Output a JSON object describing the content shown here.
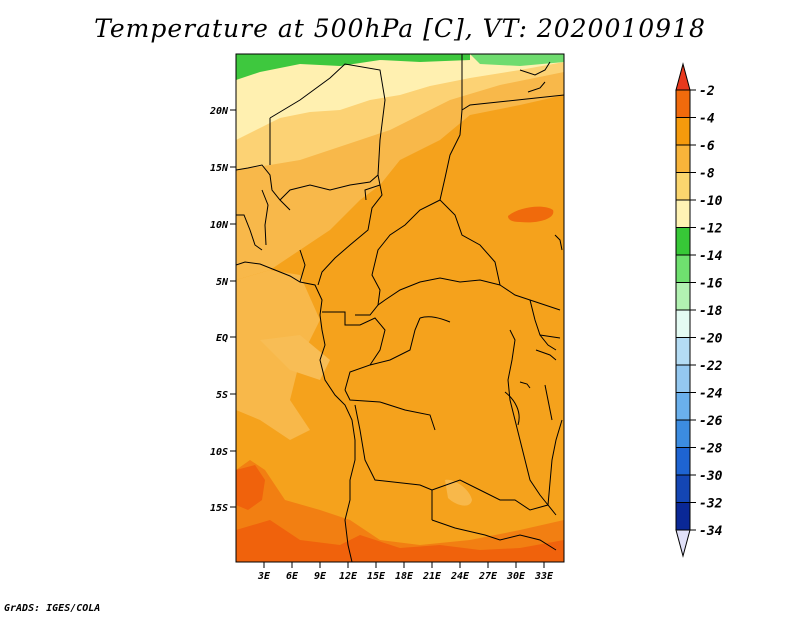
{
  "title": "Temperature at 500hPa [C], VT: 2020010918",
  "credit": "GrADS: IGES/COLA",
  "map": {
    "lat_ticks": [
      "20N",
      "15N",
      "10N",
      "5N",
      "EQ",
      "5S",
      "10S",
      "15S"
    ],
    "lon_ticks": [
      "3E",
      "6E",
      "9E",
      "12E",
      "15E",
      "18E",
      "21E",
      "24E",
      "27E",
      "30E",
      "33E"
    ]
  },
  "colorbar": {
    "labels": [
      "-2",
      "-4",
      "-6",
      "-8",
      "-10",
      "-12",
      "-14",
      "-16",
      "-18",
      "-20",
      "-22",
      "-24",
      "-26",
      "-28",
      "-30",
      "-32",
      "-34"
    ],
    "colors": [
      "#e8391e",
      "#f06a0c",
      "#f59a0c",
      "#f8b43a",
      "#fbd66e",
      "#fff3b4",
      "#37c837",
      "#6fe06f",
      "#b2f2b2",
      "#e4fbf3",
      "#b4dcf4",
      "#94c8f0",
      "#6ab0ec",
      "#3c8ce0",
      "#1e64d2",
      "#1446b4",
      "#0a2896",
      "#14145a",
      "#e0e0f8"
    ]
  }
}
